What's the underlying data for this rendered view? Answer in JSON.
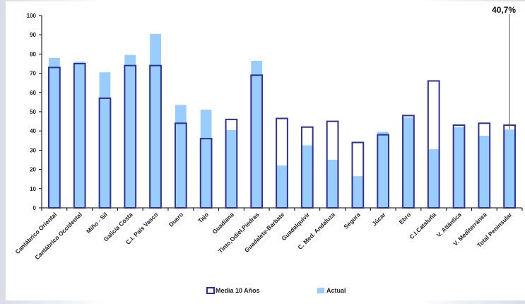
{
  "chart_data": {
    "type": "bar",
    "categories": [
      "Cantábrico Oriental",
      "Cantábrico Occidental",
      "Miño - Sil",
      "Galicia Costa",
      "C.I. País Vasco",
      "Duero",
      "Tajo",
      "Guadiana",
      "Tinto,Odiel,Piedras",
      "Guadalete-Barbate",
      "Guadalquivir",
      "C. Med. Andaluza",
      "Segura",
      "Júcar",
      "Ebro",
      "C.I.Cataluña",
      "V. Atlántica",
      "V. Mediterránea",
      "Total Peninsular"
    ],
    "series": [
      {
        "name": "Media 10 Años",
        "style": "outline",
        "color": "#2e3192",
        "values": [
          73,
          75,
          57,
          74,
          74,
          44,
          36,
          46,
          69,
          46.5,
          42,
          45,
          34,
          38,
          48,
          66,
          43,
          44,
          43
        ]
      },
      {
        "name": "Actual",
        "style": "fill",
        "color": "#99ccff",
        "values": [
          78,
          76,
          70.5,
          79.5,
          90.5,
          53.5,
          51,
          40.5,
          76.5,
          22,
          32.5,
          25,
          16.5,
          39.5,
          47,
          30.5,
          42,
          37.5,
          40.7
        ]
      }
    ],
    "yticks": [
      "0",
      "10",
      "20",
      "30",
      "40",
      "50",
      "60",
      "70",
      "80",
      "90",
      "100"
    ],
    "ylim": [
      0,
      100
    ],
    "grid": false,
    "legend_position": "bottom",
    "annotation": {
      "text": "40,7%",
      "category": "Total Peninsular",
      "value": 40.7
    }
  }
}
